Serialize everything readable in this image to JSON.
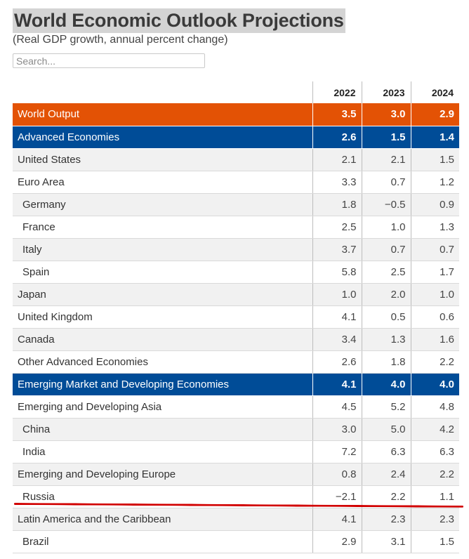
{
  "header": {
    "title": "World Economic Outlook Projections",
    "subtitle": "(Real GDP growth, annual percent change)"
  },
  "search": {
    "placeholder": "Search...",
    "value": ""
  },
  "table": {
    "columns": [
      "2022",
      "2023",
      "2024"
    ],
    "rows": [
      {
        "name": "World Output",
        "values": [
          "3.5",
          "3.0",
          "2.9"
        ],
        "style": "orange"
      },
      {
        "name": "Advanced Economies",
        "values": [
          "2.6",
          "1.5",
          "1.4"
        ],
        "style": "blue"
      },
      {
        "name": "United States",
        "values": [
          "2.1",
          "2.1",
          "1.5"
        ],
        "style": "gray"
      },
      {
        "name": "Euro Area",
        "values": [
          "3.3",
          "0.7",
          "1.2"
        ],
        "style": "white"
      },
      {
        "name": "Germany",
        "values": [
          "1.8",
          "−0.5",
          "0.9"
        ],
        "style": "gray",
        "sub": true
      },
      {
        "name": "France",
        "values": [
          "2.5",
          "1.0",
          "1.3"
        ],
        "style": "white",
        "sub": true
      },
      {
        "name": "Italy",
        "values": [
          "3.7",
          "0.7",
          "0.7"
        ],
        "style": "gray",
        "sub": true
      },
      {
        "name": "Spain",
        "values": [
          "5.8",
          "2.5",
          "1.7"
        ],
        "style": "white",
        "sub": true
      },
      {
        "name": "Japan",
        "values": [
          "1.0",
          "2.0",
          "1.0"
        ],
        "style": "gray"
      },
      {
        "name": "United Kingdom",
        "values": [
          "4.1",
          "0.5",
          "0.6"
        ],
        "style": "white"
      },
      {
        "name": "Canada",
        "values": [
          "3.4",
          "1.3",
          "1.6"
        ],
        "style": "gray"
      },
      {
        "name": "Other Advanced Economies",
        "values": [
          "2.6",
          "1.8",
          "2.2"
        ],
        "style": "white"
      },
      {
        "name": "Emerging Market and Developing Economies",
        "values": [
          "4.1",
          "4.0",
          "4.0"
        ],
        "style": "blue"
      },
      {
        "name": "Emerging and Developing Asia",
        "values": [
          "4.5",
          "5.2",
          "4.8"
        ],
        "style": "white"
      },
      {
        "name": "China",
        "values": [
          "3.0",
          "5.0",
          "4.2"
        ],
        "style": "gray",
        "sub": true
      },
      {
        "name": "India",
        "values": [
          "7.2",
          "6.3",
          "6.3"
        ],
        "style": "white",
        "sub": true
      },
      {
        "name": "Emerging and Developing Europe",
        "values": [
          "0.8",
          "2.4",
          "2.2"
        ],
        "style": "gray"
      },
      {
        "name": "Russia",
        "values": [
          "−2.1",
          "2.2",
          "1.1"
        ],
        "style": "white",
        "sub": true
      },
      {
        "name": "Latin America and the Caribbean",
        "values": [
          "4.1",
          "2.3",
          "2.3"
        ],
        "style": "gray"
      },
      {
        "name": "Brazil",
        "values": [
          "2.9",
          "3.1",
          "1.5"
        ],
        "style": "white",
        "sub": true
      }
    ]
  },
  "annotation": {
    "underline_color": "#d10000"
  }
}
